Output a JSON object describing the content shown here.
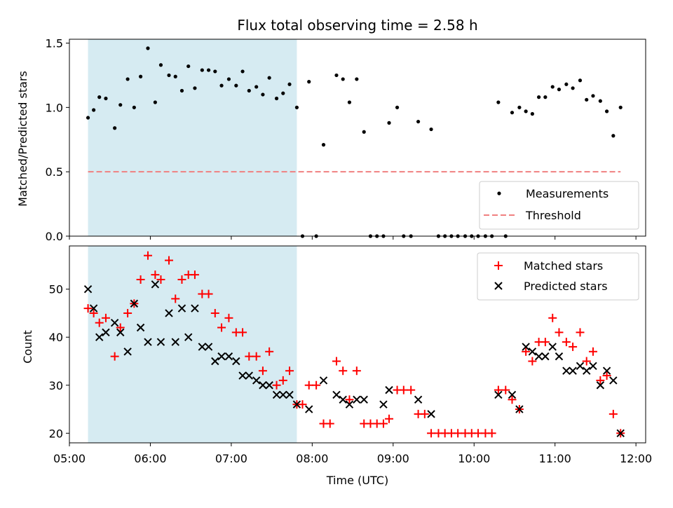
{
  "colors": {
    "measurement": "#000000",
    "threshold": "#f08080",
    "matched": "#ff0000",
    "predicted": "#000000",
    "shade": "#add8e6"
  },
  "chart_data": [
    {
      "type": "scatter",
      "title": "Flux total observing time = 2.58 h",
      "xlabel": "",
      "ylabel": "Matched/Predicted stars",
      "xlim": [
        5.0,
        12.12
      ],
      "ylim": [
        0.0,
        1.53
      ],
      "yticks": [
        0.0,
        0.5,
        1.0,
        1.5
      ],
      "ytick_labels": [
        "0.0",
        "0.5",
        "1.0",
        "1.5"
      ],
      "shaded_span": [
        5.23,
        7.81
      ],
      "legend_position": "lower-right",
      "legend": [
        "Measurements",
        "Threshold"
      ],
      "threshold": {
        "name": "Threshold",
        "value": 0.5,
        "x_range": [
          5.23,
          11.81
        ]
      },
      "series": [
        {
          "name": "Measurements",
          "x": [
            5.23,
            5.3,
            5.37,
            5.45,
            5.56,
            5.63,
            5.72,
            5.8,
            5.88,
            5.97,
            6.06,
            6.13,
            6.23,
            6.31,
            6.39,
            6.47,
            6.55,
            6.64,
            6.72,
            6.8,
            6.88,
            6.97,
            7.06,
            7.14,
            7.22,
            7.31,
            7.39,
            7.47,
            7.56,
            7.64,
            7.72,
            7.81,
            7.88,
            7.96,
            8.05,
            8.14,
            8.3,
            8.38,
            8.46,
            8.55,
            8.64,
            8.72,
            8.8,
            8.88,
            8.95,
            9.05,
            9.13,
            9.22,
            9.31,
            9.47,
            9.56,
            9.64,
            9.72,
            9.8,
            9.89,
            9.97,
            10.05,
            10.14,
            10.22,
            10.3,
            10.39,
            10.47,
            10.56,
            10.64,
            10.72,
            10.8,
            10.88,
            10.97,
            11.05,
            11.14,
            11.22,
            11.31,
            11.39,
            11.47,
            11.56,
            11.64,
            11.72,
            11.81
          ],
          "y": [
            0.92,
            0.98,
            1.08,
            1.07,
            0.84,
            1.02,
            1.22,
            1.0,
            1.24,
            1.46,
            1.04,
            1.33,
            1.25,
            1.24,
            1.13,
            1.32,
            1.15,
            1.29,
            1.29,
            1.28,
            1.17,
            1.22,
            1.17,
            1.28,
            1.13,
            1.16,
            1.1,
            1.23,
            1.07,
            1.11,
            1.18,
            1.0,
            0.0,
            1.2,
            0.0,
            0.71,
            1.25,
            1.22,
            1.04,
            1.22,
            0.81,
            0.0,
            0.0,
            0.0,
            0.88,
            1.0,
            0.0,
            0.0,
            0.89,
            0.83,
            0.0,
            0.0,
            0.0,
            0.0,
            0.0,
            0.0,
            0.0,
            0.0,
            0.0,
            1.04,
            0.0,
            0.96,
            1.0,
            0.97,
            0.95,
            1.08,
            1.08,
            1.16,
            1.14,
            1.18,
            1.15,
            1.21,
            1.06,
            1.09,
            1.05,
            0.97,
            0.78,
            1.0
          ]
        }
      ]
    },
    {
      "type": "scatter",
      "title": "",
      "xlabel": "Time (UTC)",
      "ylabel": "Count",
      "xlim": [
        5.0,
        12.12
      ],
      "ylim": [
        18.0,
        59.0
      ],
      "yticks": [
        20,
        30,
        40,
        50
      ],
      "ytick_labels": [
        "20",
        "30",
        "40",
        "50"
      ],
      "xticks": [
        5,
        6,
        7,
        8,
        9,
        10,
        11,
        12
      ],
      "xtick_labels": [
        "05:00",
        "06:00",
        "07:00",
        "08:00",
        "09:00",
        "10:00",
        "11:00",
        "12:00"
      ],
      "shaded_span": [
        5.23,
        7.81
      ],
      "legend_position": "upper-right",
      "legend": [
        "Matched stars",
        "Predicted stars"
      ],
      "series": [
        {
          "name": "Matched stars",
          "x": [
            5.23,
            5.3,
            5.37,
            5.45,
            5.56,
            5.63,
            5.72,
            5.8,
            5.88,
            5.97,
            6.06,
            6.13,
            6.23,
            6.31,
            6.39,
            6.47,
            6.55,
            6.64,
            6.72,
            6.8,
            6.88,
            6.97,
            7.06,
            7.14,
            7.22,
            7.31,
            7.39,
            7.47,
            7.56,
            7.64,
            7.72,
            7.81,
            7.88,
            7.96,
            8.05,
            8.14,
            8.22,
            8.3,
            8.38,
            8.46,
            8.55,
            8.64,
            8.72,
            8.8,
            8.88,
            8.95,
            9.05,
            9.13,
            9.22,
            9.31,
            9.39,
            9.47,
            9.56,
            9.64,
            9.72,
            9.8,
            9.89,
            9.97,
            10.05,
            10.14,
            10.22,
            10.3,
            10.39,
            10.47,
            10.56,
            10.64,
            10.72,
            10.8,
            10.88,
            10.97,
            11.05,
            11.14,
            11.22,
            11.31,
            11.39,
            11.47,
            11.56,
            11.64,
            11.72,
            11.81
          ],
          "y": [
            46,
            45,
            43,
            44,
            36,
            42,
            45,
            47,
            52,
            57,
            53,
            52,
            56,
            48,
            52,
            53,
            53,
            49,
            49,
            45,
            42,
            44,
            41,
            41,
            36,
            36,
            33,
            37,
            30,
            31,
            33,
            26,
            26,
            30,
            30,
            22,
            22,
            35,
            33,
            27,
            33,
            22,
            22,
            22,
            22,
            23,
            29,
            29,
            29,
            24,
            24,
            20,
            20,
            20,
            20,
            20,
            20,
            20,
            20,
            20,
            20,
            29,
            29,
            27,
            25,
            37,
            35,
            39,
            39,
            44,
            41,
            39,
            38,
            41,
            35,
            37,
            31,
            32,
            24,
            20
          ]
        },
        {
          "name": "Predicted stars",
          "x": [
            5.23,
            5.3,
            5.37,
            5.45,
            5.56,
            5.63,
            5.72,
            5.8,
            5.88,
            5.97,
            6.06,
            6.13,
            6.23,
            6.31,
            6.39,
            6.47,
            6.55,
            6.64,
            6.72,
            6.8,
            6.88,
            6.97,
            7.06,
            7.14,
            7.22,
            7.31,
            7.39,
            7.47,
            7.56,
            7.64,
            7.72,
            7.81,
            7.96,
            8.14,
            8.3,
            8.38,
            8.46,
            8.55,
            8.64,
            8.88,
            8.95,
            9.31,
            9.47,
            10.3,
            10.47,
            10.56,
            10.64,
            10.72,
            10.8,
            10.88,
            10.97,
            11.05,
            11.14,
            11.22,
            11.31,
            11.39,
            11.47,
            11.56,
            11.64,
            11.72,
            11.81
          ],
          "y": [
            50,
            46,
            40,
            41,
            43,
            41,
            37,
            47,
            42,
            39,
            51,
            39,
            45,
            39,
            46,
            40,
            46,
            38,
            38,
            35,
            36,
            36,
            35,
            32,
            32,
            31,
            30,
            30,
            28,
            28,
            28,
            26,
            25,
            31,
            28,
            27,
            26,
            27,
            27,
            26,
            29,
            27,
            24,
            28,
            28,
            25,
            38,
            37,
            36,
            36,
            38,
            36,
            33,
            33,
            34,
            33,
            34,
            30,
            33,
            31,
            20
          ]
        }
      ]
    }
  ]
}
